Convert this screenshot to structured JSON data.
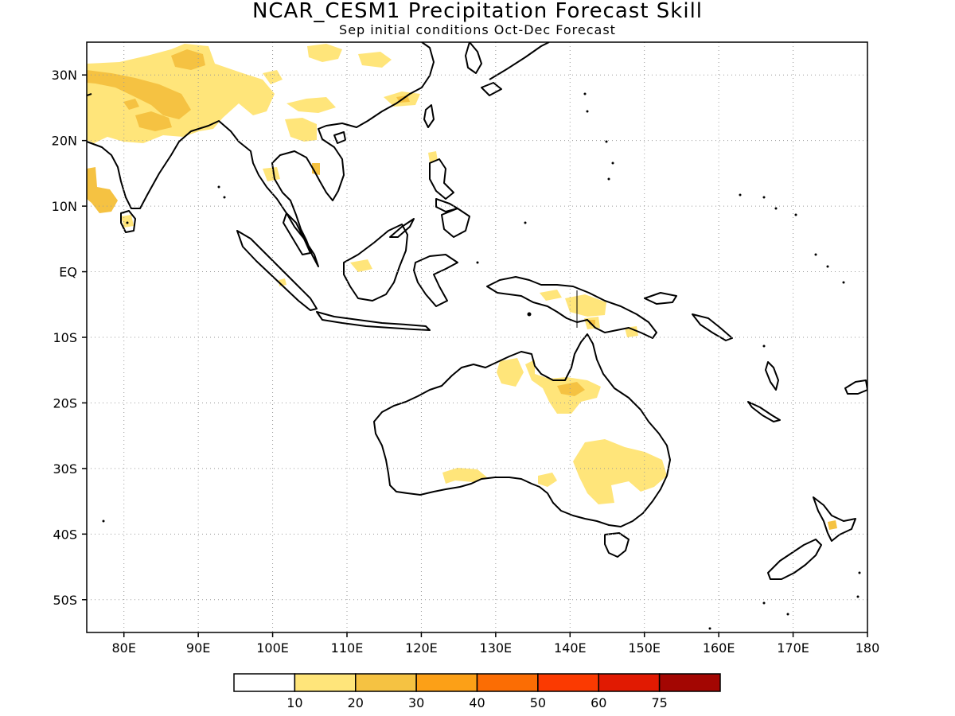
{
  "title": "NCAR_CESM1 Precipitation Forecast Skill",
  "subtitle": "Sep initial conditions  Oct-Dec Forecast",
  "colors": {
    "skill_10_20": "#ffe57a",
    "skill_20_30": "#f5c242",
    "skill_30_40": "#fca017",
    "skill_40_50": "#fb6d04",
    "skill_50_60": "#fb3a01",
    "skill_60_75": "#e11a02",
    "skill_75_plus": "#a30602"
  },
  "chart_data": {
    "type": "heatmap",
    "lon_range": [
      75,
      180
    ],
    "lat_range": [
      -55,
      35
    ],
    "lon_ticks": [
      "80E",
      "90E",
      "100E",
      "110E",
      "120E",
      "130E",
      "140E",
      "150E",
      "160E",
      "170E",
      "180"
    ],
    "lat_ticks": [
      "30N",
      "20N",
      "10N",
      "EQ",
      "10S",
      "20S",
      "30S",
      "40S",
      "50S"
    ],
    "colorbar": {
      "labels": [
        "10",
        "20",
        "30",
        "40",
        "50",
        "60",
        "75"
      ],
      "colors": [
        "#ffffff",
        "#ffe57a",
        "#f5c242",
        "#fca017",
        "#fb6d04",
        "#fb3a01",
        "#e11a02",
        "#a30602"
      ]
    }
  }
}
